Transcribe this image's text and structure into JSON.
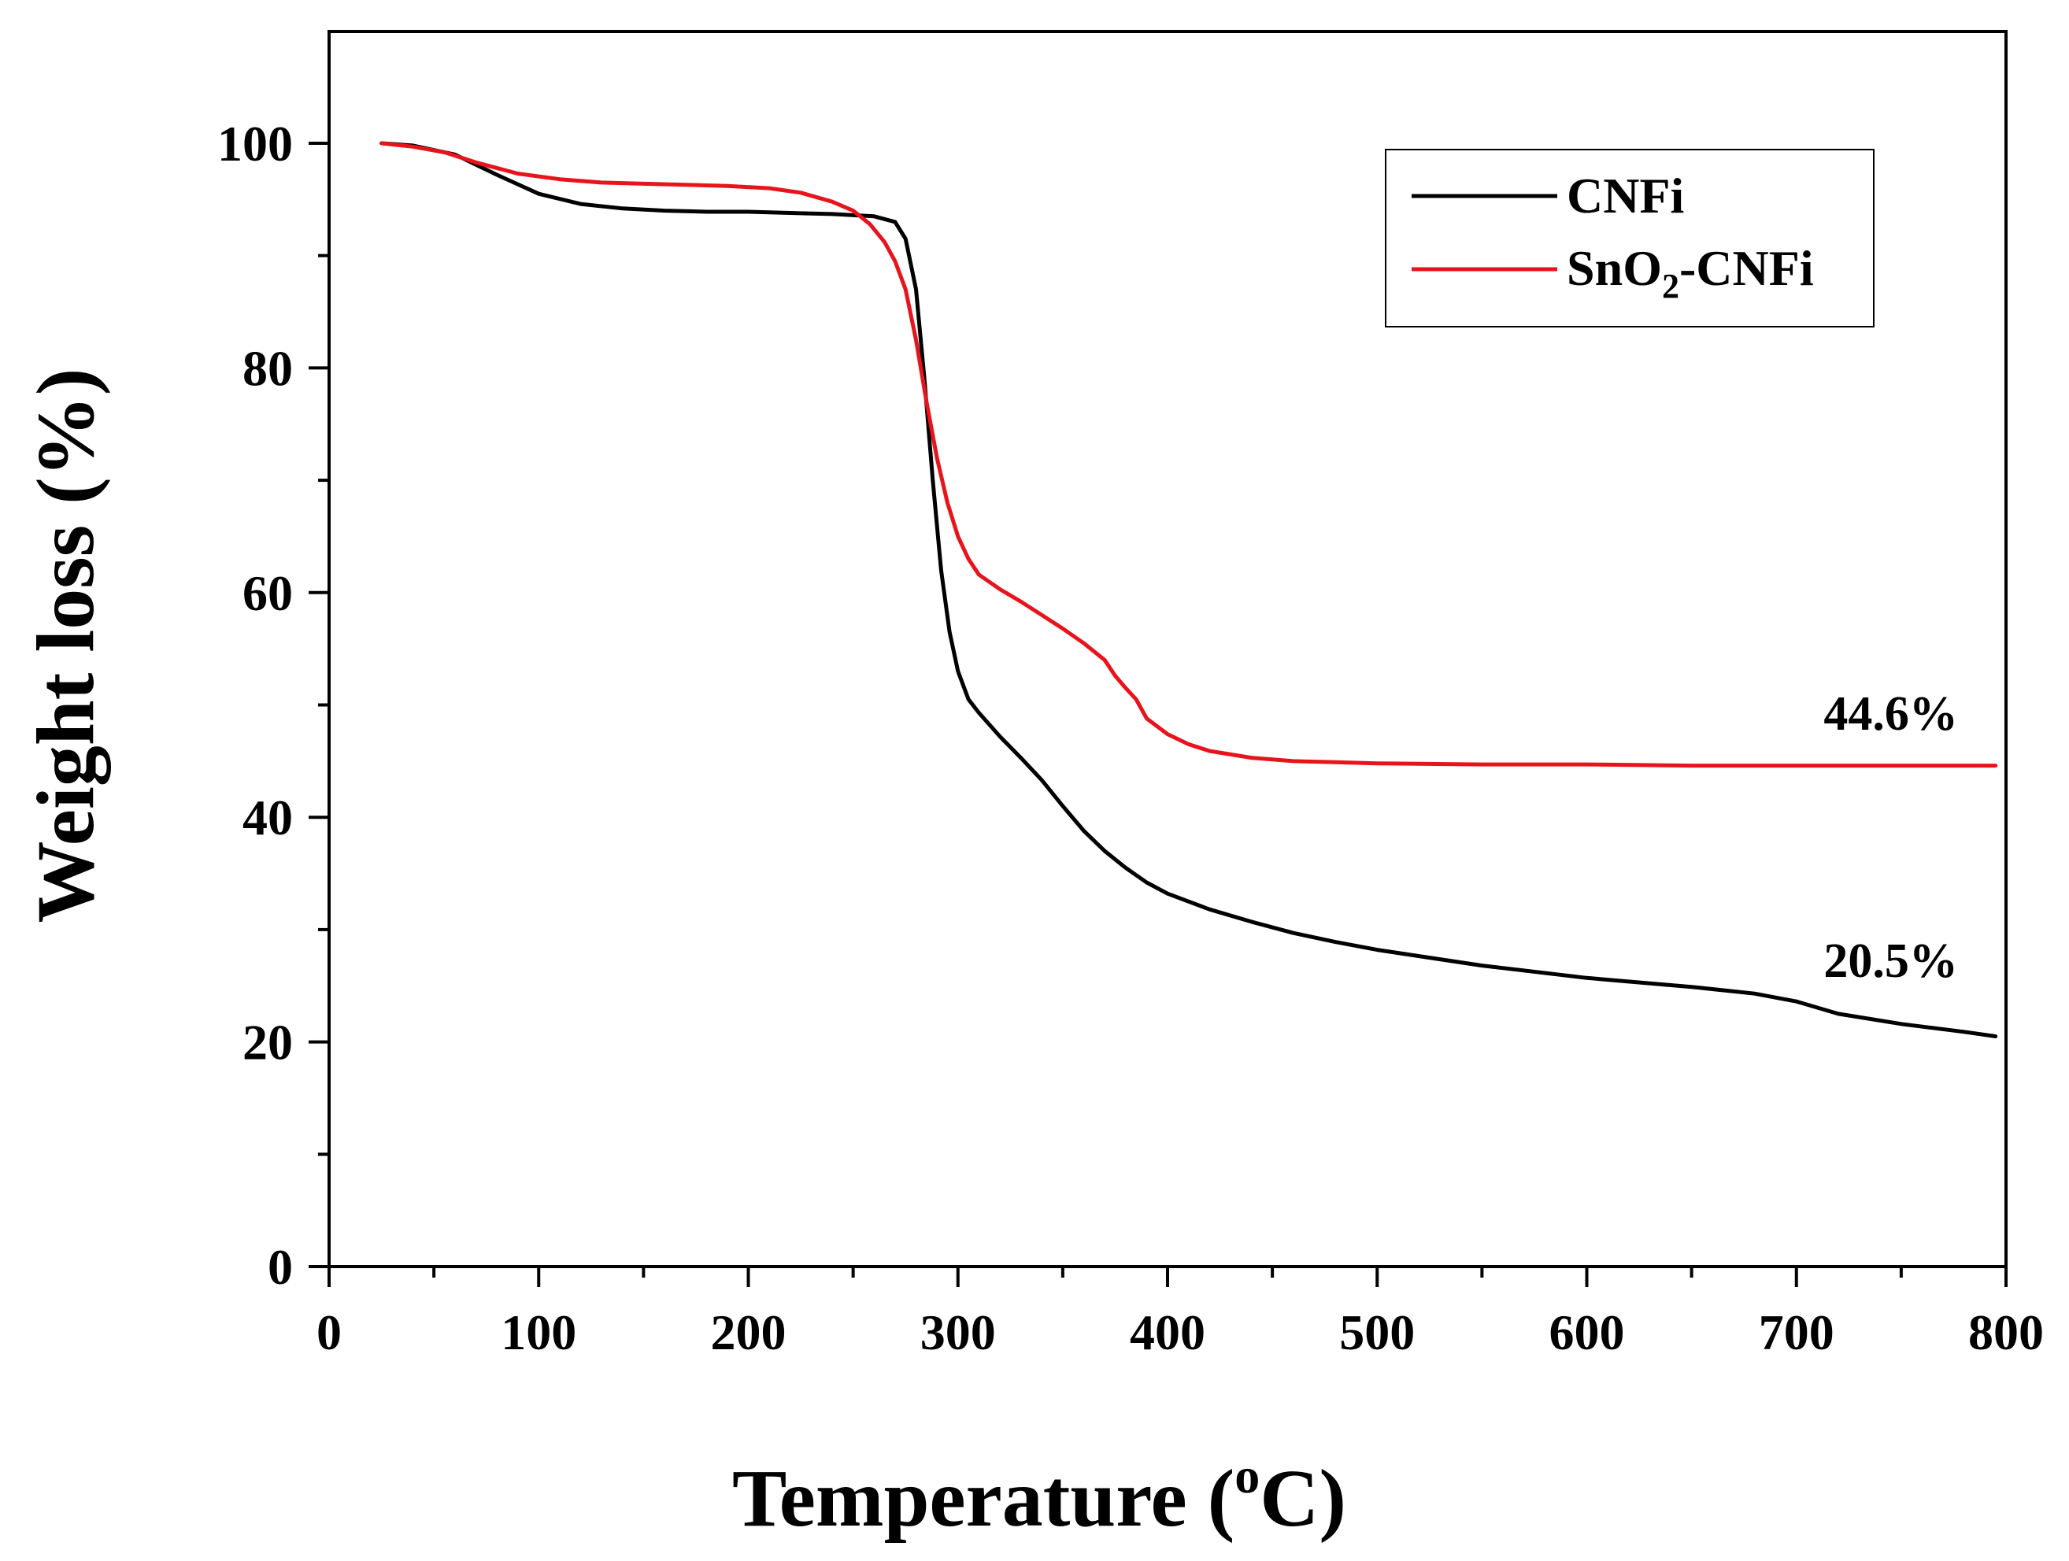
{
  "chart_data": {
    "type": "line",
    "title": "",
    "xlabel": {
      "text": "Temperature (",
      "sup": "o",
      "tail": "C)"
    },
    "ylabel": "Weight loss (%)",
    "xlim": [
      0,
      800
    ],
    "ylim": [
      0,
      110
    ],
    "x_ticks": [
      0,
      100,
      200,
      300,
      400,
      500,
      600,
      700,
      800
    ],
    "y_ticks": [
      0,
      20,
      40,
      60,
      80,
      100
    ],
    "x_tick_labels": [
      "0",
      "100",
      "200",
      "300",
      "400",
      "500",
      "600",
      "700",
      "800"
    ],
    "y_tick_labels": [
      "0",
      "20",
      "40",
      "60",
      "80",
      "100"
    ],
    "grid": false,
    "legend": {
      "position": "top-right",
      "entries": [
        {
          "name": "CNFi",
          "parts": {
            "main": "CNFi",
            "sub": "",
            "tail": ""
          }
        },
        {
          "name": "SnO2-CNFi",
          "parts": {
            "main": "SnO",
            "sub": "2",
            "tail": "-CNFi"
          }
        }
      ]
    },
    "series": [
      {
        "name": "CNFi",
        "color": "#000000",
        "x": [
          25,
          40,
          60,
          80,
          100,
          120,
          140,
          160,
          180,
          200,
          220,
          240,
          260,
          270,
          275,
          280,
          284,
          288,
          292,
          296,
          300,
          305,
          310,
          320,
          330,
          340,
          350,
          360,
          370,
          380,
          390,
          400,
          420,
          440,
          460,
          480,
          500,
          550,
          600,
          650,
          680,
          700,
          720,
          750,
          780,
          795
        ],
        "y": [
          100,
          99.8,
          99.0,
          97.2,
          95.5,
          94.6,
          94.2,
          94.0,
          93.9,
          93.9,
          93.8,
          93.7,
          93.5,
          93.0,
          91.5,
          87.0,
          79.0,
          70.0,
          62.0,
          56.5,
          53.0,
          50.5,
          49.3,
          47.2,
          45.3,
          43.3,
          41.0,
          38.8,
          37.0,
          35.5,
          34.2,
          33.2,
          31.8,
          30.7,
          29.7,
          28.9,
          28.2,
          26.8,
          25.7,
          24.9,
          24.3,
          23.6,
          22.5,
          21.6,
          20.9,
          20.5
        ]
      },
      {
        "name": "SnO2-CNFi",
        "color": "#e8141b",
        "x": [
          25,
          40,
          55,
          70,
          90,
          110,
          130,
          150,
          170,
          190,
          210,
          225,
          240,
          250,
          258,
          265,
          270,
          275,
          280,
          285,
          290,
          295,
          300,
          305,
          310,
          320,
          330,
          340,
          350,
          360,
          370,
          375,
          380,
          385,
          390,
          400,
          410,
          420,
          440,
          460,
          480,
          500,
          550,
          600,
          650,
          700,
          750,
          795
        ],
        "y": [
          100,
          99.7,
          99.2,
          98.3,
          97.3,
          96.8,
          96.5,
          96.4,
          96.3,
          96.2,
          96.0,
          95.6,
          94.8,
          94.0,
          92.8,
          91.2,
          89.5,
          87.0,
          82.5,
          77.0,
          72.0,
          68.0,
          65.0,
          63.0,
          61.6,
          60.3,
          59.2,
          58.0,
          56.8,
          55.5,
          54.0,
          52.6,
          51.5,
          50.5,
          48.8,
          47.4,
          46.5,
          45.9,
          45.3,
          45.0,
          44.9,
          44.8,
          44.7,
          44.7,
          44.6,
          44.6,
          44.6,
          44.6
        ]
      }
    ],
    "annotations": [
      {
        "text": "44.6%",
        "x": 745,
        "y": 47.8
      },
      {
        "text": "20.5%",
        "x": 745,
        "y": 25.8
      }
    ]
  }
}
